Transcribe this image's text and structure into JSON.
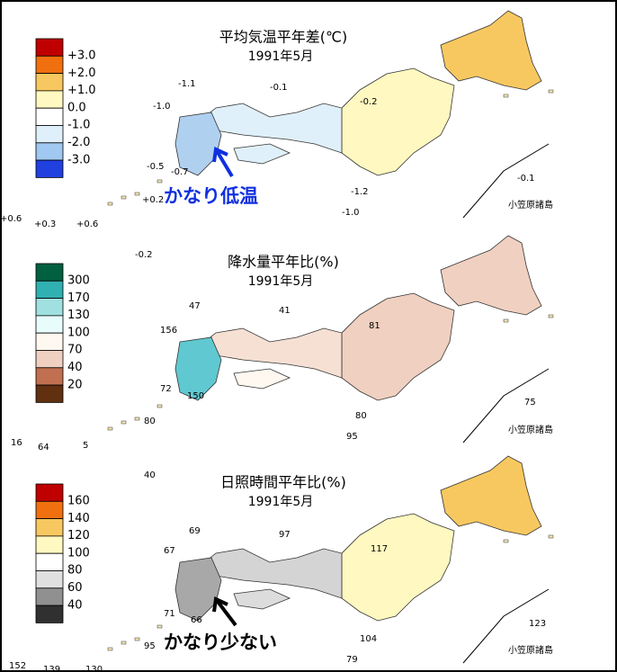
{
  "panels": [
    {
      "title": "平均気温平年差(℃)",
      "subtitle": "1991年5月",
      "legend": [
        "+3.0",
        "+2.0",
        "+1.0",
        "0.0",
        "-1.0",
        "-2.0",
        "-3.0"
      ],
      "stations": [
        "-1.1",
        "-0.1",
        "-1.0",
        "-0.2",
        "-0.5",
        "-0.7",
        "-1.2",
        "-1.0",
        "+0.6",
        "+0.3",
        "+0.6",
        "+0.2",
        "-0.1",
        "-0.2"
      ],
      "inset_label": "小笠原諸島",
      "annotation": "かなり低温"
    },
    {
      "title": "降水量平年比(%)",
      "subtitle": "1991年5月",
      "legend": [
        "300",
        "170",
        "130",
        "100",
        "70",
        "40",
        "20"
      ],
      "stations": [
        "47",
        "41",
        "81",
        "156",
        "72",
        "150",
        "80",
        "80",
        "95",
        "16",
        "64",
        "5",
        "75",
        "40"
      ],
      "inset_label": "小笠原諸島"
    },
    {
      "title": "日照時間平年比(%)",
      "subtitle": "1991年5月",
      "legend": [
        "160",
        "140",
        "120",
        "100",
        "80",
        "60",
        "40"
      ],
      "stations": [
        "69",
        "97",
        "67",
        "117",
        "71",
        "66",
        "95",
        "104",
        "79",
        "123",
        "152",
        "139",
        "130"
      ],
      "inset_label": "小笠原諸島",
      "annotation": "かなり少ない"
    }
  ]
}
